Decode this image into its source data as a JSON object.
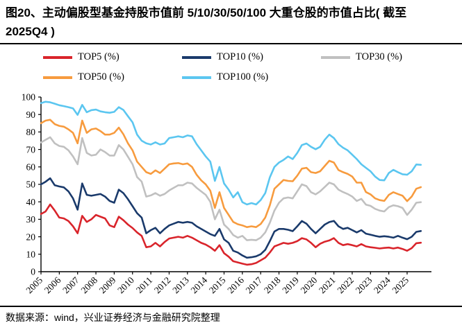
{
  "page": {
    "title": "图20、主动偏股型基金持股市值前 5/10/30/50/100 大重仓股的市值占比( 截至 2025Q4 )",
    "title_line1": "图20、主动偏股型基金持股市值前 5/10/30/50/100 大重仓股的市值占比( 截至",
    "title_line2": "2025Q4 )",
    "source": "数据来源：wind，兴业证券经济与金融研究院整理"
  },
  "colors": {
    "top5": "#D9242B",
    "top10": "#1A3A6B",
    "top30": "#C0C0C0",
    "top50": "#F79B3E",
    "top100": "#5BC6F0",
    "highlight": "#7030A0",
    "axis": "#000000"
  },
  "chart_data": {
    "type": "line",
    "title": "主动偏股型基金持股市值前 5/10/30/50/100 大重仓股的市值占比（截至 2025Q4）",
    "frequency": "quarterly",
    "x_start_year": 2005,
    "x_tick_years": [
      "2005",
      "2006",
      "2007",
      "2008",
      "2009",
      "2010",
      "2011",
      "2012",
      "2013",
      "2014",
      "2015",
      "2016",
      "2017",
      "2018",
      "2019",
      "2020",
      "2021",
      "2022",
      "2023",
      "2024",
      "2025"
    ],
    "ylim": [
      0,
      100
    ],
    "y_tick_step": 10,
    "y_tick_labels": [
      "0",
      "10",
      "20",
      "30",
      "40",
      "50",
      "60",
      "70",
      "80",
      "90",
      "100"
    ],
    "grid": false,
    "legend_position": "top",
    "highlight_box": {
      "label": "2025",
      "from_year": 2025.05,
      "to_year": 2026.25,
      "value_range": [
        6.5,
        85.5
      ]
    },
    "series": [
      {
        "name": "TOP5 (%)",
        "color": "#D9242B",
        "values": [
          33,
          34.5,
          38.5,
          35,
          31,
          30.5,
          29,
          26,
          22,
          32,
          28.5,
          30,
          32.5,
          31.5,
          30.5,
          26.5,
          25.5,
          31.5,
          29.5,
          27,
          25,
          22.5,
          20.5,
          14,
          14.5,
          16.5,
          14.5,
          17,
          19,
          19.5,
          20,
          19.5,
          20.5,
          19.5,
          18,
          16.5,
          15.5,
          14,
          12,
          15.2,
          10.6,
          8.6,
          6,
          5.3,
          4.6,
          4,
          4.3,
          5,
          6.5,
          8,
          11,
          14.5,
          15.5,
          16.5,
          16,
          16.5,
          17.5,
          19.2,
          18.5,
          16.5,
          14,
          16,
          17.2,
          17.9,
          19.2,
          16.5,
          15.2,
          15.8,
          15.2,
          14.5,
          15.8,
          14.5,
          14,
          13.7,
          13.3,
          13.6,
          13.8,
          13.3,
          13.8,
          13,
          12,
          13.5,
          16.3,
          16.6
        ]
      },
      {
        "name": "TOP10 (%)",
        "color": "#1A3A6B",
        "values": [
          50,
          51.5,
          53.5,
          49.5,
          48.8,
          48.3,
          46,
          42,
          35.5,
          50.5,
          44,
          43.5,
          44,
          44.5,
          43,
          40.5,
          39.5,
          47,
          45,
          41.5,
          37.5,
          33.5,
          31,
          22,
          23.8,
          25.1,
          22,
          24.5,
          26.5,
          27.5,
          28.5,
          28,
          28.5,
          28,
          26,
          24.5,
          23,
          21.5,
          20.5,
          24.5,
          18.5,
          16.5,
          12,
          11,
          9.3,
          8,
          8.3,
          8.8,
          10,
          12.5,
          17.5,
          23,
          24.5,
          24.5,
          24,
          23.2,
          26,
          29,
          27.5,
          24.5,
          22,
          24.5,
          27,
          28.4,
          29.1,
          26,
          24.5,
          25.1,
          23.8,
          22.5,
          23.8,
          21.8,
          21.2,
          20.5,
          20,
          20.3,
          20,
          19.5,
          20.5,
          19.5,
          18.6,
          20,
          22.8,
          23.3
        ]
      },
      {
        "name": "TOP30 (%)",
        "color": "#C0C0C0",
        "values": [
          74,
          75.5,
          77,
          73.5,
          72,
          71.5,
          69.5,
          66,
          61.5,
          76.5,
          68,
          66.5,
          67,
          70,
          68.5,
          66.5,
          66.5,
          72.5,
          70,
          65.8,
          61.5,
          54.2,
          51.6,
          43,
          43.7,
          45,
          43.5,
          44.5,
          46.5,
          48,
          49.5,
          49.5,
          51,
          50.5,
          48,
          46,
          44,
          40,
          30,
          35.5,
          27,
          24.5,
          21,
          19.5,
          20.5,
          18,
          18.3,
          18,
          19.5,
          22.5,
          28,
          35,
          39.5,
          42,
          42.5,
          42,
          46,
          50,
          49,
          45.5,
          44.3,
          46,
          48.5,
          51,
          50,
          47,
          45.6,
          44.5,
          43,
          40.5,
          41.7,
          38.4,
          37.7,
          36,
          35,
          34.5,
          37,
          38,
          37.5,
          36.5,
          32.5,
          35.5,
          39.5,
          39.8
        ]
      },
      {
        "name": "TOP50 (%)",
        "color": "#F79B3E",
        "values": [
          85,
          86.5,
          87,
          84.5,
          83.5,
          83,
          81.5,
          79.5,
          73.5,
          86.5,
          79.5,
          81.5,
          82,
          80.5,
          78.5,
          78.5,
          79.5,
          82.5,
          78.7,
          73.5,
          69.5,
          63,
          60,
          57,
          56,
          58,
          56.5,
          59,
          61.5,
          62,
          62.2,
          61.5,
          62,
          60,
          55.5,
          52.3,
          50,
          46.4,
          36.5,
          45.5,
          36.5,
          32.5,
          28.5,
          27.2,
          26.5,
          25.5,
          26,
          25.5,
          27.3,
          31,
          38,
          47.5,
          50,
          52.5,
          52,
          51.8,
          55,
          59,
          59.5,
          57,
          56.5,
          57.5,
          60.5,
          63.5,
          62.5,
          58.2,
          57,
          56,
          54.5,
          51,
          51,
          45.6,
          44.3,
          42,
          41,
          40.5,
          44,
          45.5,
          44.5,
          43.5,
          40.4,
          43,
          47.5,
          48.4
        ]
      },
      {
        "name": "TOP100 (%)",
        "color": "#5BC6F0",
        "values": [
          96.5,
          97.3,
          97,
          96.2,
          95.3,
          94.8,
          94.2,
          93.5,
          89.8,
          95.5,
          91.3,
          92.5,
          92.8,
          91.8,
          91.3,
          91,
          91.5,
          94.2,
          92.6,
          89,
          85.5,
          78.5,
          75,
          73.5,
          72.8,
          74.1,
          72.8,
          73.4,
          76.5,
          77,
          77.5,
          77,
          78,
          77.5,
          73,
          69.5,
          66,
          63,
          52,
          60,
          50.5,
          47,
          42.5,
          45.5,
          39.8,
          38.5,
          39.3,
          38.5,
          41,
          45,
          54,
          60,
          62.5,
          64,
          66,
          64.5,
          68,
          72.5,
          73.4,
          71.5,
          70.1,
          71.5,
          75.5,
          78.5,
          76.5,
          73,
          71,
          69.5,
          67,
          64.5,
          61.5,
          59.5,
          57.5,
          54.5,
          52.5,
          52.3,
          56.5,
          58.3,
          57,
          55.8,
          55.5,
          57.5,
          61.4,
          61.2
        ]
      }
    ]
  }
}
